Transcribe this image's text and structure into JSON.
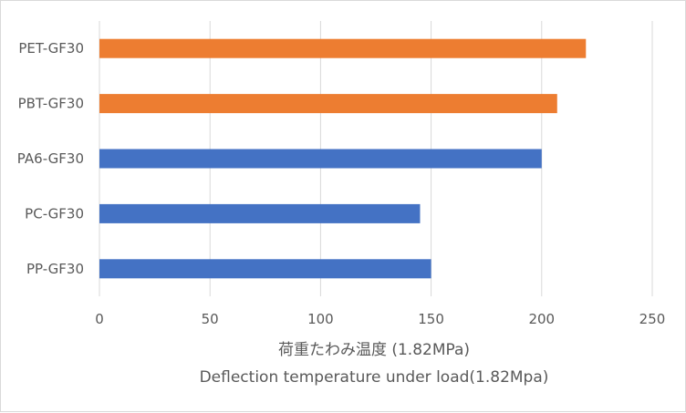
{
  "chart_data": {
    "type": "bar",
    "orientation": "horizontal",
    "categories": [
      "PP-GF30",
      "PC-GF30",
      "PA6-GF30",
      "PBT-GF30",
      "PET-GF30"
    ],
    "values": [
      150,
      145,
      200,
      207,
      220
    ],
    "bar_colors": [
      "#4472C4",
      "#4472C4",
      "#4472C4",
      "#ED7D31",
      "#ED7D31"
    ],
    "xlabel_line1": "荷重たわみ温度 (1.82MPa)",
    "xlabel_line2": "Deflection temperature under load(1.82Mpa)",
    "xlim": [
      0,
      250
    ],
    "xticks": [
      0,
      50,
      100,
      150,
      200,
      250
    ],
    "x_tick_labels": [
      "0",
      "50",
      "100",
      "150",
      "200",
      "250"
    ],
    "grid": true,
    "legend": "none"
  }
}
